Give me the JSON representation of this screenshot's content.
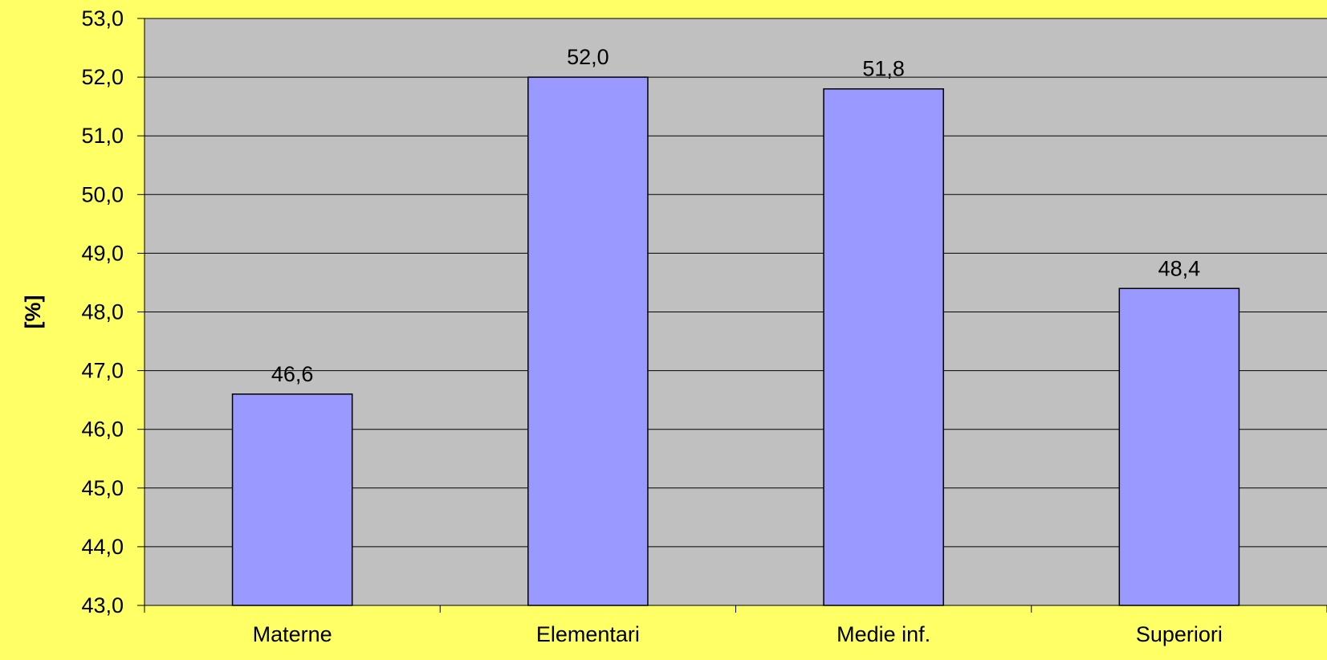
{
  "chart_data": {
    "type": "bar",
    "title": "",
    "xlabel": "",
    "ylabel": "[%]",
    "categories": [
      "Materne",
      "Elementari",
      "Medie inf.",
      "Superiori"
    ],
    "values": [
      46.6,
      52.0,
      51.8,
      48.4
    ],
    "value_labels": [
      "46,6",
      "52,0",
      "51,8",
      "48,4"
    ],
    "ylim": [
      43.0,
      53.0
    ],
    "yticks": [
      43.0,
      44.0,
      45.0,
      46.0,
      47.0,
      48.0,
      49.0,
      50.0,
      51.0,
      52.0,
      53.0
    ],
    "ytick_labels": [
      "43,0",
      "44,0",
      "45,0",
      "46,0",
      "47,0",
      "48,0",
      "49,0",
      "50,0",
      "51,0",
      "52,0",
      "53,0"
    ],
    "grid": true,
    "legend": "none",
    "colors": {
      "background": "#FFFF66",
      "plot_area": "#C0C0C0",
      "bar_fill": "#9999FF",
      "bar_stroke": "#000000",
      "gridline": "#000000",
      "text": "#000000"
    }
  }
}
